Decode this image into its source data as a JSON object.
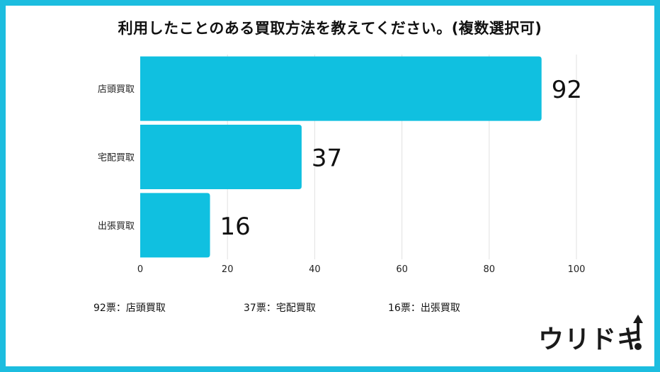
{
  "chart_data": {
    "type": "bar",
    "orientation": "horizontal",
    "title": "利用したことのある買取方法を教えてください。(複数選択可)",
    "categories": [
      "店頭買取",
      "宅配買取",
      "出張買取"
    ],
    "values": [
      92,
      37,
      16
    ],
    "xlim": [
      0,
      100
    ],
    "xticks": [
      0,
      20,
      40,
      60,
      80,
      100
    ],
    "grid": true,
    "bar_color": "#10c0e0",
    "legend": [
      "92票：店頭買取",
      "37票：宅配買取",
      "16票：出張買取"
    ]
  },
  "brand": {
    "name": "ウリドキ",
    "accent": "#1cbddf"
  }
}
